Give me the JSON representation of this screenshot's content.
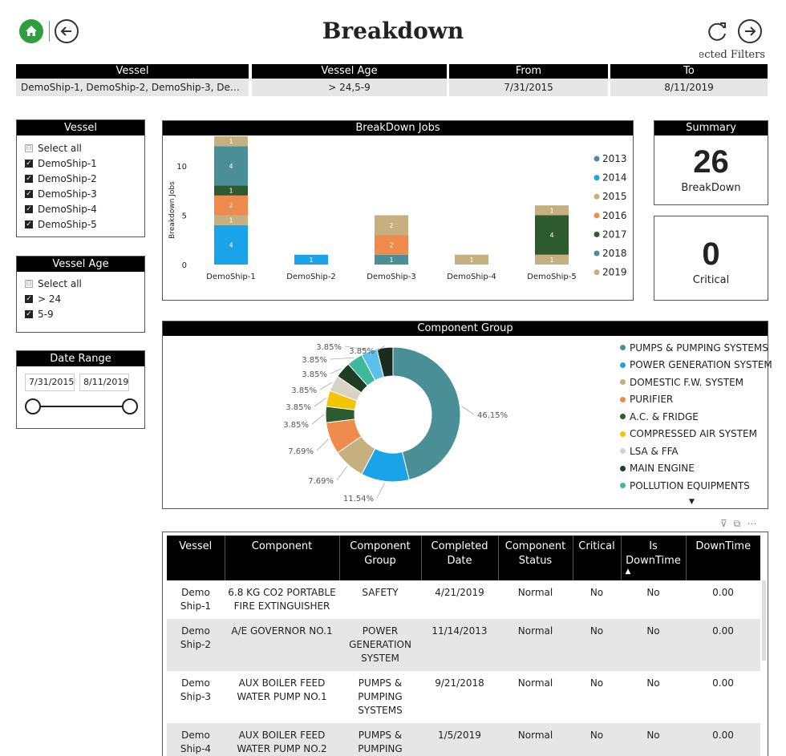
{
  "header": {
    "title": "Breakdown",
    "selected_filters_label": "Selected Filters"
  },
  "filter_bar": [
    {
      "label": "Vessel",
      "value": "DemoShip-1, DemoShip-2, DemoShip-3, Demo..."
    },
    {
      "label": "Vessel Age",
      "value": "> 24,5-9"
    },
    {
      "label": "From",
      "value": "7/31/2015"
    },
    {
      "label": "To",
      "value": "8/11/2019"
    }
  ],
  "vessel_slicer": {
    "title": "Vessel",
    "select_all": "Select all",
    "items": [
      "DemoShip-1",
      "DemoShip-2",
      "DemoShip-3",
      "DemoShip-4",
      "DemoShip-5"
    ]
  },
  "vessel_age_slicer": {
    "title": "Vessel Age",
    "select_all": "Select all",
    "items": [
      "> 24",
      "5-9"
    ]
  },
  "date_range": {
    "title": "Date Range",
    "start": "7/31/2015",
    "end": "8/11/2019"
  },
  "summary": {
    "title": "Summary",
    "breakdown_value": "26",
    "breakdown_label": "BreakDown",
    "critical_value": "0",
    "critical_label": "Critical"
  },
  "colors": {
    "2013": "#4a8f96",
    "2014": "#1aa3e8",
    "2015": "#c6b07f",
    "2016": "#ee8b4c",
    "2017": "#2e5a30",
    "2018": "#4a8f96",
    "2019": "#c6b07f"
  },
  "chart_data": [
    {
      "type": "bar",
      "title": "BreakDown Jobs",
      "ylabel": "Breakdown Jobs",
      "xlabel": "",
      "ylim": [
        0,
        13
      ],
      "yticks": [
        0,
        5,
        10
      ],
      "stacked": true,
      "categories": [
        "DemoShip-1",
        "DemoShip-2",
        "DemoShip-3",
        "DemoShip-4",
        "DemoShip-5"
      ],
      "legend": [
        "2013",
        "2014",
        "2015",
        "2016",
        "2017",
        "2018",
        "2019"
      ],
      "stacks": [
        [
          {
            "series": "2014",
            "value": 4
          },
          {
            "series": "2015",
            "value": 1
          },
          {
            "series": "2016",
            "value": 2
          },
          {
            "series": "2017",
            "value": 1
          },
          {
            "series": "2018",
            "value": 4
          },
          {
            "series": "2019",
            "value": 1
          }
        ],
        [
          {
            "series": "2014",
            "value": 1
          }
        ],
        [
          {
            "series": "2013",
            "value": 1
          },
          {
            "series": "2016",
            "value": 2
          },
          {
            "series": "2019",
            "value": 2
          }
        ],
        [
          {
            "series": "2019",
            "value": 1
          }
        ],
        [
          {
            "series": "2015",
            "value": 1
          },
          {
            "series": "2017",
            "value": 4
          },
          {
            "series": "2019",
            "value": 1
          }
        ]
      ]
    },
    {
      "type": "pie",
      "title": "Component Group",
      "slices": [
        {
          "label": "PUMPS & PUMPING SYSTEMS",
          "value": 46.15,
          "display": "46.15%",
          "color": "#4a8f96"
        },
        {
          "label": "POWER GENERATION SYSTEM",
          "value": 11.54,
          "display": "11.54%",
          "color": "#1aa3e8"
        },
        {
          "label": "DOMESTIC F.W. SYSTEM",
          "value": 7.69,
          "display": "7.69%",
          "color": "#c6b07f"
        },
        {
          "label": "PURIFIER",
          "value": 7.69,
          "display": "7.69%",
          "color": "#ee8b4c"
        },
        {
          "label": "A.C. & FRIDGE",
          "value": 3.85,
          "display": "3.85%",
          "color": "#2e5a30"
        },
        {
          "label": "COMPRESSED AIR SYSTEM",
          "value": 3.85,
          "display": "3.85%",
          "color": "#f2c500"
        },
        {
          "label": "LSA & FFA",
          "value": 3.85,
          "display": "3.85%",
          "color": "#d8d3c4"
        },
        {
          "label": "MAIN ENGINE",
          "value": 3.85,
          "display": "3.85%",
          "color": "#1f3d22"
        },
        {
          "label": "POLLUTION EQUIPMENTS",
          "value": 3.85,
          "display": "3.85%",
          "color": "#3fb89a"
        },
        {
          "label": "",
          "value": 3.85,
          "display": "3.85%",
          "color": "#5bc0eb"
        },
        {
          "label": "",
          "value": 3.85,
          "display": "3.85%",
          "color": "#1c2b1f"
        }
      ]
    }
  ],
  "table": {
    "columns": [
      "Vessel",
      "Component",
      "Component Group",
      "Completed Date",
      "Component Status",
      "Critical",
      "Is DownTime",
      "DownTime"
    ],
    "rows": [
      [
        "Demo Ship-1",
        "6.8 KG CO2 PORTABLE FIRE EXTINGUISHER",
        "SAFETY",
        "4/21/2019",
        "Normal",
        "No",
        "No",
        "0.00"
      ],
      [
        "Demo Ship-2",
        "A/E GOVERNOR NO.1",
        "POWER GENERATION SYSTEM",
        "11/14/2013",
        "Normal",
        "No",
        "No",
        "0.00"
      ],
      [
        "Demo Ship-3",
        "AUX BOILER FEED WATER PUMP NO.1",
        "PUMPS & PUMPING SYSTEMS",
        "9/21/2018",
        "Normal",
        "No",
        "No",
        "0.00"
      ],
      [
        "Demo Ship-4",
        "AUX BOILER FEED WATER PUMP NO.2",
        "PUMPS & PUMPING SYSTEMS",
        "1/5/2019",
        "Normal",
        "No",
        "No",
        "0.00"
      ]
    ]
  }
}
